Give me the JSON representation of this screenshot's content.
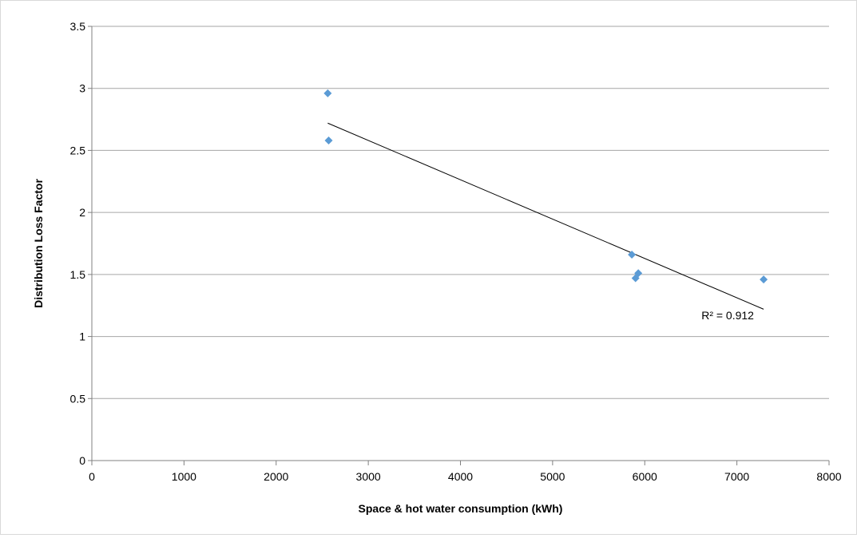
{
  "chart_data": {
    "type": "scatter",
    "title": "",
    "xlabel": "Space & hot water consumption (kWh)",
    "ylabel": "Distribution Loss Factor",
    "xlim": [
      0,
      8000
    ],
    "ylim": [
      0,
      3.5
    ],
    "x_ticks": [
      "0",
      "1000",
      "2000",
      "3000",
      "4000",
      "5000",
      "6000",
      "7000",
      "8000"
    ],
    "y_ticks": [
      "0",
      "0.5",
      "1",
      "1.5",
      "2",
      "2.5",
      "3",
      "3.5"
    ],
    "x_tick_values": [
      0,
      1000,
      2000,
      3000,
      4000,
      5000,
      6000,
      7000,
      8000
    ],
    "y_tick_values": [
      0,
      0.5,
      1,
      1.5,
      2,
      2.5,
      3,
      3.5
    ],
    "grid": "horizontal",
    "legend": "none",
    "series": [
      {
        "marker": "diamond",
        "color": "#5b9bd5",
        "points": [
          {
            "x": 2560,
            "y": 2.96
          },
          {
            "x": 2570,
            "y": 2.58
          },
          {
            "x": 5860,
            "y": 1.66
          },
          {
            "x": 5900,
            "y": 1.47
          },
          {
            "x": 5930,
            "y": 1.51
          },
          {
            "x": 7290,
            "y": 1.46
          }
        ]
      }
    ],
    "trendline": {
      "type": "linear",
      "color": "#000000",
      "from": {
        "x": 2560,
        "y": 2.72
      },
      "to": {
        "x": 7290,
        "y": 1.22
      }
    },
    "annotations": [
      {
        "text": "R² = 0.912",
        "x": 6900,
        "y": 1.14
      }
    ]
  }
}
